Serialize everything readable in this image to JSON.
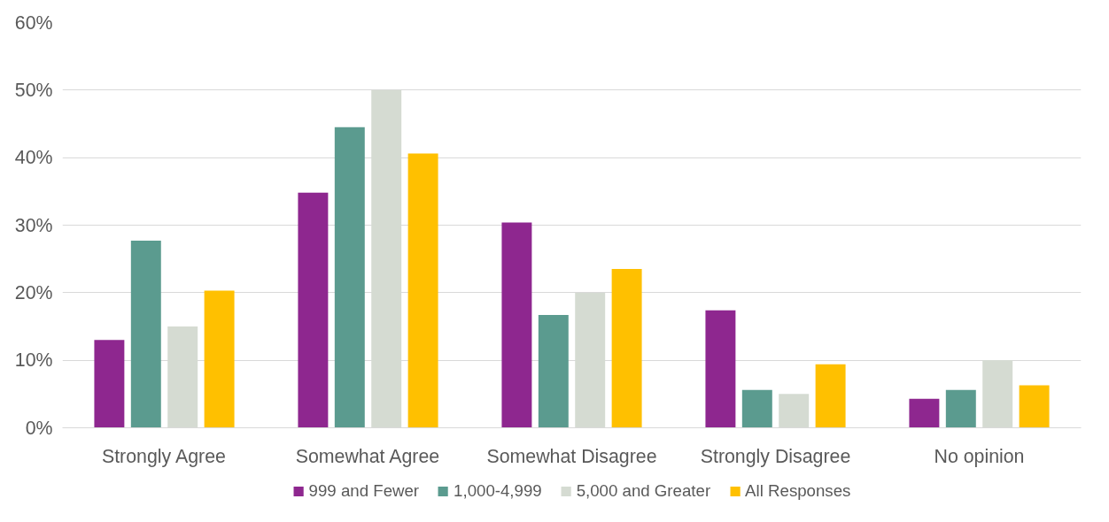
{
  "chart_data": {
    "type": "bar",
    "categories": [
      "Strongly Agree",
      "Somewhat Agree",
      "Somewhat Disagree",
      "Strongly Disagree",
      "No opinion"
    ],
    "series": [
      {
        "name": "999 and Fewer",
        "color": "#8e278f",
        "values": [
          13.0,
          34.8,
          30.4,
          17.4,
          4.3
        ]
      },
      {
        "name": "1,000-4,999",
        "color": "#5b9b8f",
        "values": [
          27.7,
          44.5,
          16.7,
          5.6,
          5.6
        ]
      },
      {
        "name": "5,000 and Greater",
        "color": "#d5dbd2",
        "values": [
          15.0,
          50.0,
          20.0,
          5.0,
          10.0
        ]
      },
      {
        "name": "All Responses",
        "color": "#ffc000",
        "values": [
          20.3,
          40.6,
          23.5,
          9.4,
          6.3
        ]
      }
    ],
    "ylim": [
      0,
      60
    ],
    "yticks": [
      {
        "value": 0,
        "label": "0%"
      },
      {
        "value": 10,
        "label": "10%"
      },
      {
        "value": 20,
        "label": "20%"
      },
      {
        "value": 30,
        "label": "30%"
      },
      {
        "value": 40,
        "label": "40%"
      },
      {
        "value": 50,
        "label": "50%"
      },
      {
        "value": 60,
        "label": "60%"
      }
    ],
    "grid": "y",
    "legend": "bottom"
  }
}
